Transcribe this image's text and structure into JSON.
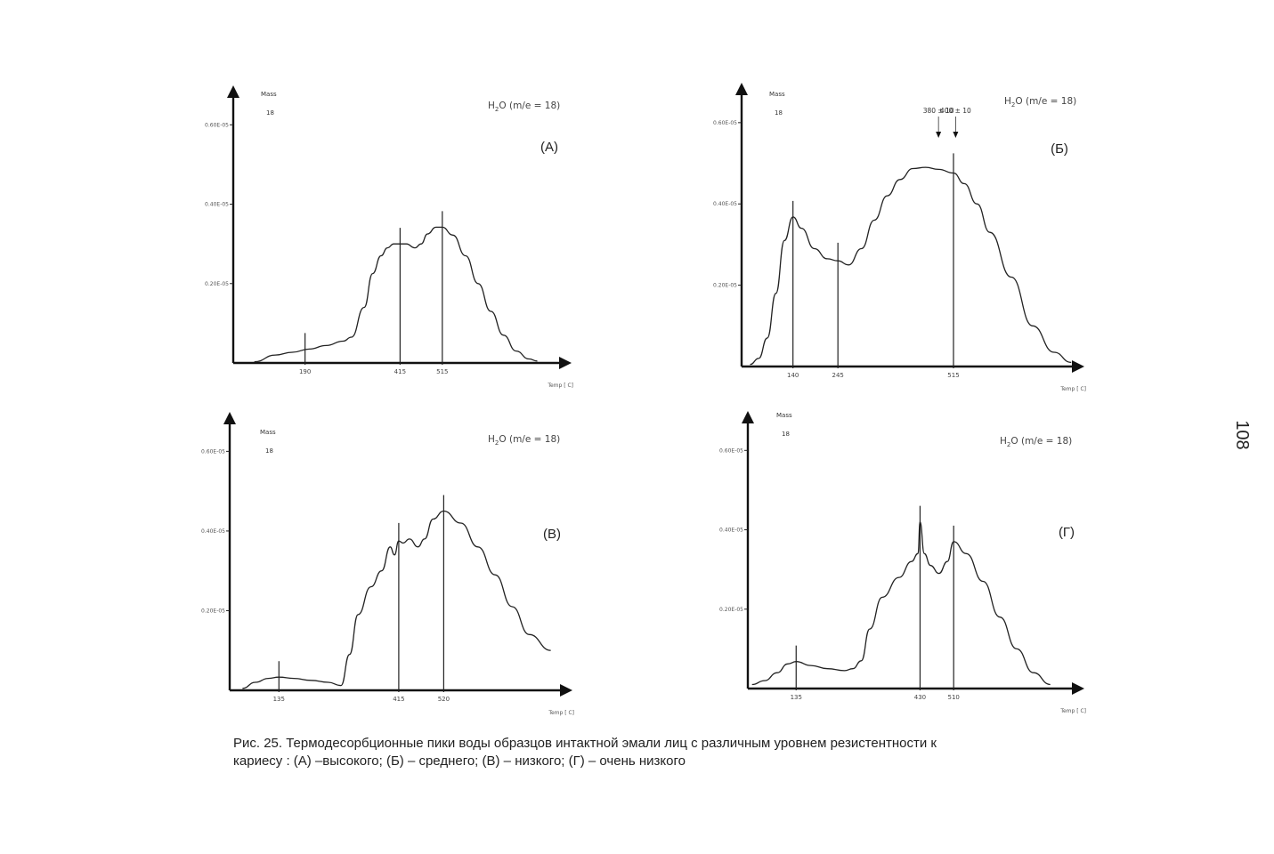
{
  "page_number": "108",
  "caption": {
    "line1": "Рис. 25. Термодесорбционные пики воды образцов интактной эмали лиц с различным уровнем резистентности к",
    "line2": "кариесу : (А) –высокого; (Б) – среднего; (В) – низкого; (Г) – очень низкого"
  },
  "chart_data": [
    {
      "type": "line",
      "panel_label": "(А)",
      "species_label": "H2O (m/e = 18)",
      "mass_label": "Mass",
      "mass_value": "18",
      "xlabel": "Temp [ C]",
      "yticks": [
        "0.60E-05",
        "0.40E-05",
        "0.20E-05"
      ],
      "ytick_values": [
        0.6,
        0.4,
        0.2
      ],
      "ylim": [
        0,
        0.65
      ],
      "xlim": [
        20,
        800
      ],
      "marked_temperatures": [
        190,
        415,
        515
      ],
      "marked_labels": [
        "190",
        "415",
        "515"
      ],
      "x": [
        70,
        120,
        160,
        200,
        240,
        280,
        300,
        330,
        350,
        370,
        385,
        400,
        415,
        430,
        450,
        465,
        480,
        500,
        515,
        540,
        570,
        600,
        630,
        660,
        690,
        720,
        740
      ],
      "values": [
        0.003,
        0.02,
        0.027,
        0.035,
        0.044,
        0.055,
        0.065,
        0.14,
        0.225,
        0.27,
        0.29,
        0.3,
        0.3,
        0.3,
        0.29,
        0.3,
        0.325,
        0.342,
        0.342,
        0.322,
        0.27,
        0.2,
        0.13,
        0.07,
        0.03,
        0.01,
        0.005
      ]
    },
    {
      "type": "line",
      "panel_label": "(Б)",
      "species_label": "H2O (m/e = 18)",
      "mass_label": "Mass",
      "mass_value": "18",
      "xlabel": "Temp [ C]",
      "yticks": [
        "0.60E-05",
        "0.40E-05",
        "0.20E-05"
      ],
      "ytick_values": [
        0.6,
        0.4,
        0.2
      ],
      "ylim": [
        0,
        0.65
      ],
      "xlim": [
        20,
        800
      ],
      "marked_temperatures": [
        140,
        245,
        515
      ],
      "marked_labels": [
        "140",
        "245",
        "515"
      ],
      "annotations": [
        "380 ± 10",
        "400 ± 10"
      ],
      "annotation_temperatures": [
        480,
        520
      ],
      "x": [
        40,
        60,
        80,
        100,
        120,
        140,
        160,
        190,
        220,
        245,
        270,
        300,
        330,
        360,
        390,
        420,
        450,
        480,
        515,
        540,
        570,
        600,
        650,
        700,
        750,
        790
      ],
      "values": [
        0.005,
        0.02,
        0.07,
        0.18,
        0.31,
        0.368,
        0.34,
        0.29,
        0.265,
        0.26,
        0.25,
        0.29,
        0.36,
        0.42,
        0.46,
        0.487,
        0.49,
        0.485,
        0.476,
        0.45,
        0.4,
        0.33,
        0.22,
        0.1,
        0.035,
        0.01
      ]
    },
    {
      "type": "line",
      "panel_label": "(В)",
      "species_label": "H2O (m/e = 18)",
      "mass_label": "Mass",
      "mass_value": "18",
      "xlabel": "Temp [ C]",
      "yticks": [
        "0.60E-05",
        "0.40E-05",
        "0.20E-05"
      ],
      "ytick_values": [
        0.6,
        0.4,
        0.2
      ],
      "ylim": [
        0,
        0.65
      ],
      "xlim": [
        20,
        800
      ],
      "marked_temperatures": [
        135,
        415,
        520
      ],
      "marked_labels": [
        "135",
        "415",
        "520"
      ],
      "x": [
        50,
        80,
        110,
        135,
        170,
        210,
        250,
        280,
        300,
        320,
        350,
        375,
        395,
        405,
        415,
        425,
        440,
        460,
        475,
        495,
        520,
        560,
        600,
        640,
        680,
        720,
        770
      ],
      "values": [
        0.005,
        0.02,
        0.03,
        0.033,
        0.03,
        0.025,
        0.02,
        0.012,
        0.09,
        0.19,
        0.26,
        0.3,
        0.36,
        0.34,
        0.375,
        0.37,
        0.38,
        0.36,
        0.38,
        0.43,
        0.45,
        0.42,
        0.36,
        0.29,
        0.21,
        0.14,
        0.1
      ]
    },
    {
      "type": "line",
      "panel_label": "(Г)",
      "species_label": "H2O (m/e = 18)",
      "mass_label": "Mass",
      "mass_value": "18",
      "xlabel": "Temp [ C]",
      "yticks": [
        "0.60E-05",
        "0.40E-05",
        "0.20E-05"
      ],
      "ytick_values": [
        0.6,
        0.4,
        0.2
      ],
      "ylim": [
        0,
        0.65
      ],
      "xlim": [
        20,
        800
      ],
      "marked_temperatures": [
        135,
        430,
        510
      ],
      "marked_labels": [
        "135",
        "430",
        "510"
      ],
      "x": [
        30,
        60,
        90,
        115,
        135,
        170,
        210,
        250,
        270,
        290,
        310,
        340,
        380,
        410,
        425,
        430,
        440,
        455,
        475,
        495,
        510,
        540,
        580,
        620,
        660,
        700,
        740
      ],
      "values": [
        0.01,
        0.02,
        0.04,
        0.062,
        0.068,
        0.058,
        0.05,
        0.045,
        0.05,
        0.07,
        0.15,
        0.23,
        0.28,
        0.32,
        0.34,
        0.42,
        0.34,
        0.31,
        0.29,
        0.32,
        0.37,
        0.34,
        0.27,
        0.18,
        0.1,
        0.04,
        0.01
      ]
    }
  ]
}
